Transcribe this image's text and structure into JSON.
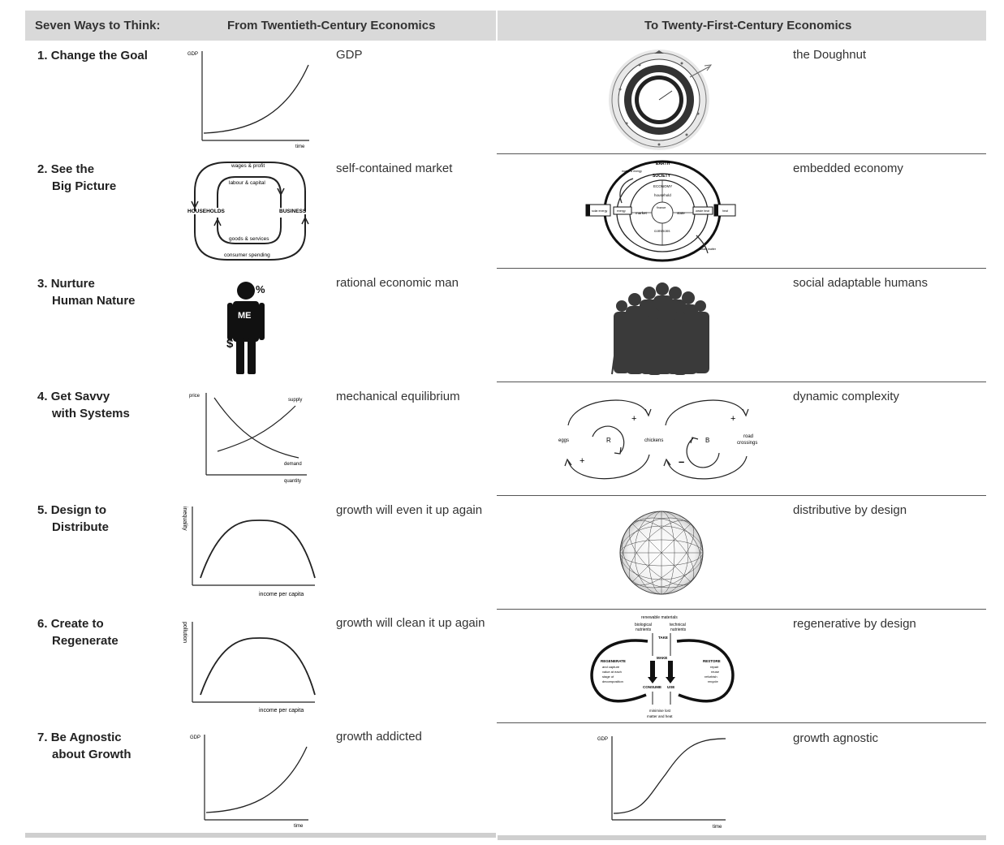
{
  "header": {
    "col1": "Seven Ways to Think:",
    "col2": "From Twentieth-Century Economics",
    "col3": "To Twenty-First-Century Economics"
  },
  "rows": [
    {
      "num": "1.",
      "title_l1": "Change the Goal",
      "title_l2": "",
      "old_label": "GDP",
      "new_label": "the Doughnut"
    },
    {
      "num": "2.",
      "title_l1": "See the",
      "title_l2": "Big Picture",
      "old_label": "self-contained market",
      "new_label": "embedded economy"
    },
    {
      "num": "3.",
      "title_l1": "Nurture",
      "title_l2": "Human Nature",
      "old_label": "rational economic man",
      "new_label": "social adaptable humans"
    },
    {
      "num": "4.",
      "title_l1": "Get Savvy",
      "title_l2": "with Systems",
      "old_label": "mechanical equilibrium",
      "new_label": "dynamic complexity"
    },
    {
      "num": "5.",
      "title_l1": "Design to",
      "title_l2": "Distribute",
      "old_label": "growth will even it up again",
      "new_label": "distributive by design"
    },
    {
      "num": "6.",
      "title_l1": "Create to",
      "title_l2": "Regenerate",
      "old_label": "growth will clean it up again",
      "new_label": "regenerative by design"
    },
    {
      "num": "7.",
      "title_l1": "Be Agnostic",
      "title_l2": "about Growth",
      "old_label": "growth addicted",
      "new_label": "growth agnostic"
    }
  ],
  "diagrams": {
    "gdp_chart": {
      "y_label": "GDP",
      "x_label": "time"
    },
    "circular_flow": {
      "top_outer": "wages & profit",
      "top_inner": "labour & capital",
      "left": "HOUSEHOLDS",
      "right": "BUSINESS",
      "bottom_inner": "goods & services",
      "bottom_outer": "consumer spending"
    },
    "embedded": {
      "earth": "EARTH",
      "society": "SOCIETY",
      "economy": "ECONOMY",
      "household": "household",
      "market": "market",
      "state": "state",
      "commons": "commons",
      "finance": "finance",
      "solar_energy": "solar energy",
      "energy": "energy",
      "waste_heat": "waste heat",
      "heat": "heat",
      "matter_in": "matter & energy",
      "matter_out": "waste matter"
    },
    "economic_man": {
      "badge": "ME",
      "percent": "%",
      "dollar": "$"
    },
    "supply_demand": {
      "y_label": "price",
      "x_label": "quantity",
      "supply": "supply",
      "demand": "demand"
    },
    "feedback_loops": {
      "eggs": "eggs",
      "chickens": "chickens",
      "road_l1": "road",
      "road_l2": "crossings",
      "R": "R",
      "B": "B",
      "plus": "+",
      "minus": "–"
    },
    "kuznets_inequality": {
      "y_label": "inequality",
      "x_label": "income per capita"
    },
    "kuznets_pollution": {
      "y_label": "pollution",
      "x_label": "income per capita"
    },
    "regenerative": {
      "renewable": "renewable materials",
      "bio_l1": "biological",
      "bio_l2": "nutrients",
      "tech_l1": "technical",
      "tech_l2": "nutrients",
      "take": "TAKE",
      "make": "MAKE",
      "consume": "CONSUME",
      "use": "USE",
      "regenerate": "REGENERATE",
      "regen_l1": "and capture",
      "regen_l2": "value at each",
      "regen_l3": "stage of",
      "regen_l4": "decomposition",
      "restore": "RESTORE",
      "restore_l1": "repair",
      "restore_l2": "reuse",
      "restore_l3": "refurbish",
      "restore_l4": "recycle",
      "min_l1": "minimise lost",
      "min_l2": "matter and heat"
    },
    "growth_agnostic": {
      "y_label": "GDP",
      "x_label": "time"
    }
  }
}
